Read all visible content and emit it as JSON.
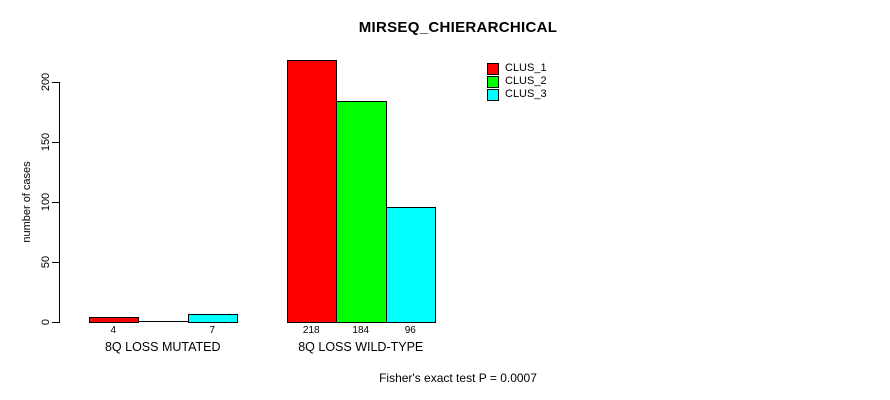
{
  "chart_data": {
    "type": "bar",
    "title": "MIRSEQ_CHIERARCHICAL",
    "ylabel": "number of cases",
    "xlabel": "",
    "categories": [
      "8Q LOSS MUTATED",
      "8Q LOSS WILD-TYPE"
    ],
    "series": [
      {
        "name": "CLUS_1",
        "color": "#ff0000",
        "values": [
          4,
          218
        ]
      },
      {
        "name": "CLUS_2",
        "color": "#00ff00",
        "values": [
          0,
          184
        ]
      },
      {
        "name": "CLUS_3",
        "color": "#00ffff",
        "values": [
          7,
          96
        ]
      }
    ],
    "bar_labels": [
      [
        "4",
        "",
        "7"
      ],
      [
        "218",
        "184",
        "96"
      ]
    ],
    "y_ticks": [
      0,
      50,
      100,
      150,
      200
    ],
    "ylim": [
      0,
      220
    ],
    "grid": false,
    "legend_position": "top-right",
    "annotation": "Fisher's exact test P = 0.0007"
  }
}
